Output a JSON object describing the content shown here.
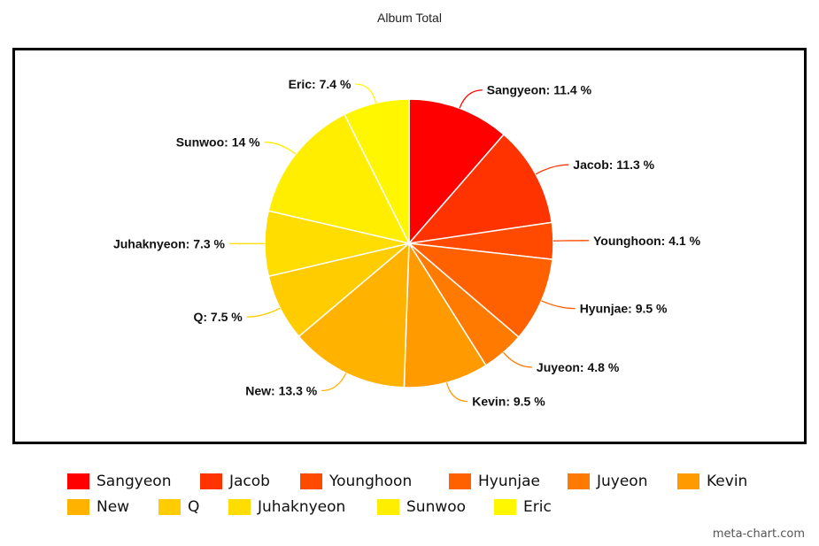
{
  "chart_data": {
    "type": "pie",
    "title": "Album Total",
    "slices": [
      {
        "label": "Sangyeon",
        "value": 11.4,
        "display": "Sangyeon: 11.4 %",
        "color": "#ff0000"
      },
      {
        "label": "Jacob",
        "value": 11.3,
        "display": "Jacob: 11.3 %",
        "color": "#ff3300"
      },
      {
        "label": "Younghoon",
        "value": 4.1,
        "display": "Younghoon: 4.1 %",
        "color": "#ff4a00"
      },
      {
        "label": "Hyunjae",
        "value": 9.5,
        "display": "Hyunjae: 9.5 %",
        "color": "#ff6000"
      },
      {
        "label": "Juyeon",
        "value": 4.8,
        "display": "Juyeon: 4.8 %",
        "color": "#ff7a00"
      },
      {
        "label": "Kevin",
        "value": 9.5,
        "display": "Kevin: 9.5 %",
        "color": "#ff9a00"
      },
      {
        "label": "New",
        "value": 13.3,
        "display": "New: 13.3 %",
        "color": "#ffb300"
      },
      {
        "label": "Q",
        "value": 7.5,
        "display": "Q: 7.5 %",
        "color": "#ffcc00"
      },
      {
        "label": "Juhaknyeon",
        "value": 7.3,
        "display": "Juhaknyeon: 7.3 %",
        "color": "#ffdd00"
      },
      {
        "label": "Sunwoo",
        "value": 14,
        "display": "Sunwoo: 14 %",
        "color": "#ffee00"
      },
      {
        "label": "Eric",
        "value": 7.4,
        "display": "Eric: 7.4 %",
        "color": "#fff700"
      }
    ],
    "legend_position": "bottom"
  },
  "credit": "meta-chart.com"
}
